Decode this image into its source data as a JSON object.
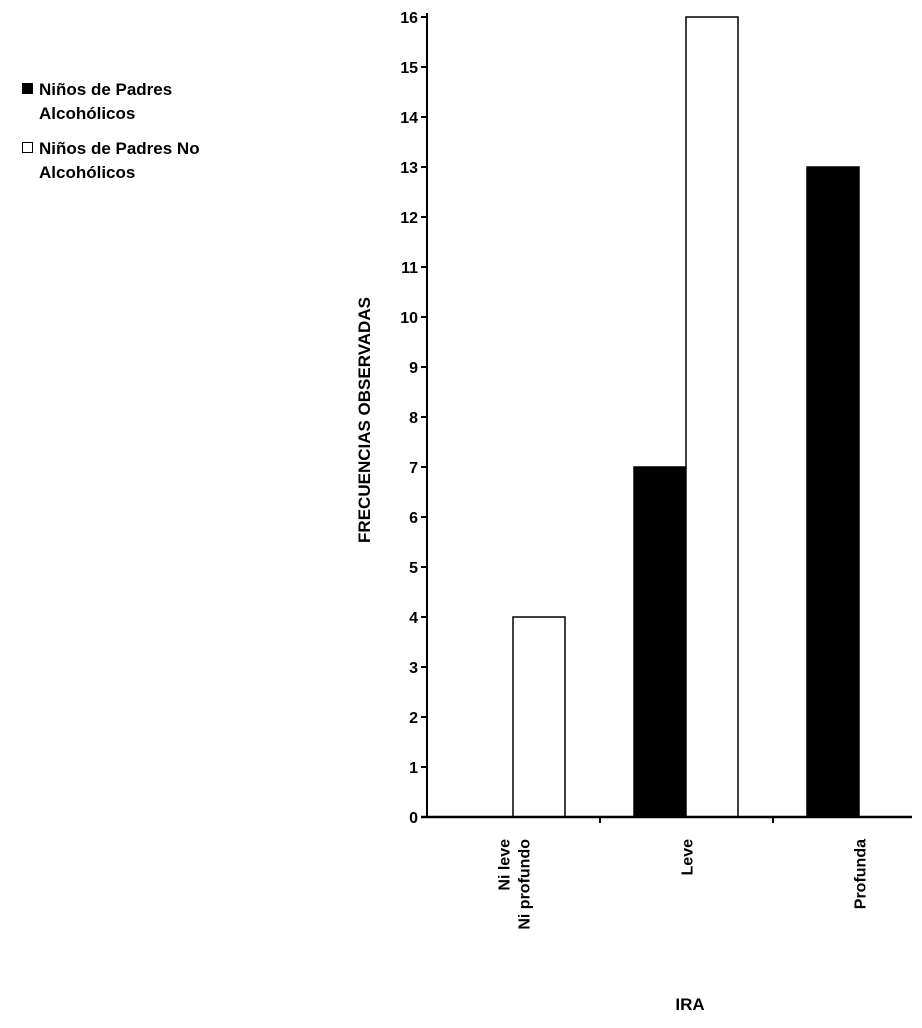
{
  "chart_data": {
    "type": "bar",
    "categories": [
      "Ni leve\nNi profundo",
      "Leve",
      "Profunda"
    ],
    "series": [
      {
        "name": "Niños de Padres\nAlcohólicos",
        "color": "#000000",
        "values": [
          0,
          7,
          13
        ]
      },
      {
        "name": "Niños de Padres No\nAlcohólicos",
        "color": "#ffffff",
        "values": [
          4,
          16,
          0
        ]
      }
    ],
    "title": "",
    "xlabel": "IRA",
    "ylabel": "FRECUENCIAS OBSERVADAS",
    "ylim": [
      0,
      16
    ],
    "yticks": [
      0,
      1,
      2,
      3,
      4,
      5,
      6,
      7,
      8,
      9,
      10,
      11,
      12,
      13,
      14,
      15,
      16
    ],
    "grid": false,
    "legend_position": "top-left"
  }
}
